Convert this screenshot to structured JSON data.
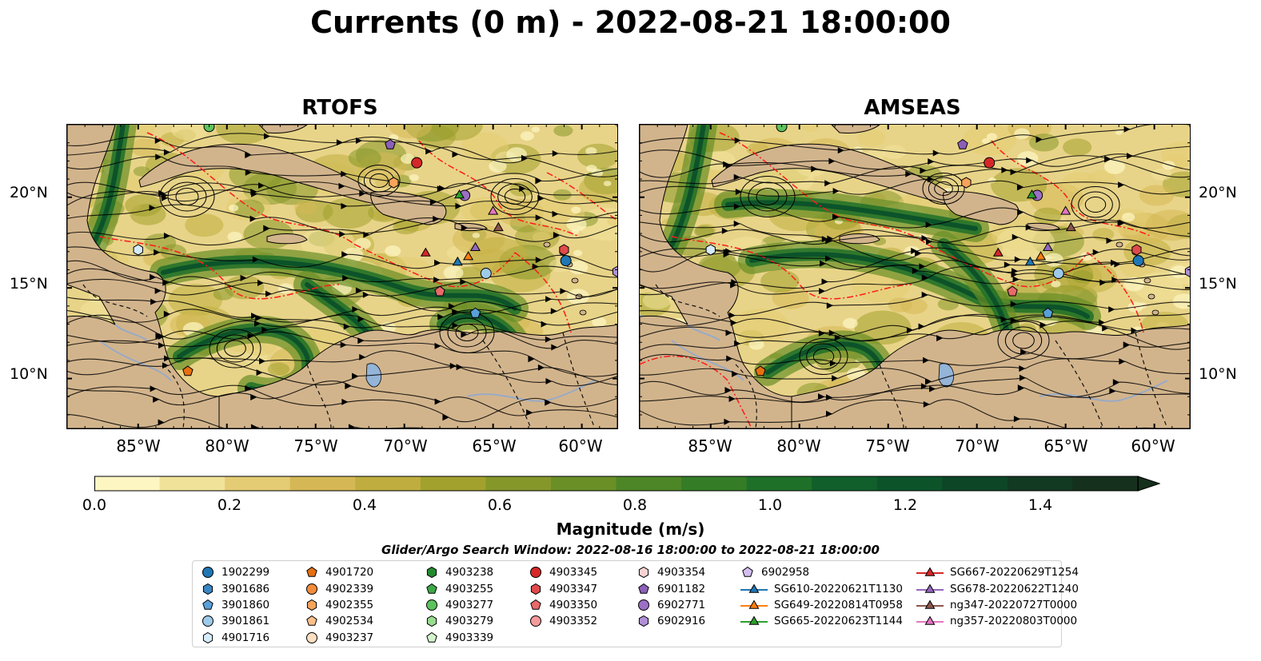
{
  "title": "Currents (0 m) - 2022-08-21 18:00:00",
  "panels": [
    {
      "name": "RTOFS"
    },
    {
      "name": "AMSEAS"
    }
  ],
  "axes": {
    "lat_ticks": [
      "20°N",
      "15°N",
      "10°N"
    ],
    "lon_ticks": [
      "85°W",
      "80°W",
      "75°W",
      "70°W",
      "65°W",
      "60°W"
    ]
  },
  "colorbar": {
    "label": "Magnitude (m/s)",
    "ticks": [
      "0.0",
      "0.2",
      "0.4",
      "0.6",
      "0.8",
      "1.0",
      "1.2",
      "1.4"
    ],
    "colors": [
      "#fdf6c3",
      "#f1e29a",
      "#e3cc73",
      "#d5b855",
      "#bfae3f",
      "#a2a12e",
      "#86972a",
      "#6a8f27",
      "#4d8626",
      "#347c26",
      "#1e7028",
      "#115f2b",
      "#0c532a",
      "#0d4627",
      "#123922",
      "#15301c"
    ]
  },
  "search_window": "Glider/Argo Search Window: 2022-08-16 18:00:00 to 2022-08-21 18:00:00",
  "legend": {
    "columns": [
      [
        {
          "label": "1902299",
          "marker": "circle",
          "color": "#1f77b4"
        },
        {
          "label": "3901686",
          "marker": "hexagon",
          "color": "#3a86c2"
        },
        {
          "label": "3901860",
          "marker": "pentagon",
          "color": "#5aa0d8"
        },
        {
          "label": "3901861",
          "marker": "circle",
          "color": "#9ecae9"
        },
        {
          "label": "4901716",
          "marker": "hexagon",
          "color": "#d6ebfa"
        }
      ],
      [
        {
          "label": "4901720",
          "marker": "pentagon",
          "color": "#e6700f"
        },
        {
          "label": "4902339",
          "marker": "circle",
          "color": "#f28c3c"
        },
        {
          "label": "4902355",
          "marker": "hexagon",
          "color": "#f7a35c"
        },
        {
          "label": "4902534",
          "marker": "pentagon",
          "color": "#fbc08a"
        },
        {
          "label": "4903237",
          "marker": "circle",
          "color": "#fde0c2"
        }
      ],
      [
        {
          "label": "4903238",
          "marker": "hexagon",
          "color": "#238b2e"
        },
        {
          "label": "4903255",
          "marker": "pentagon",
          "color": "#3ca846"
        },
        {
          "label": "4903277",
          "marker": "circle",
          "color": "#5dc25e"
        },
        {
          "label": "4903279",
          "marker": "hexagon",
          "color": "#98dc8f"
        },
        {
          "label": "4903339",
          "marker": "pentagon",
          "color": "#d5f2cf"
        }
      ],
      [
        {
          "label": "4903345",
          "marker": "circle",
          "color": "#d62728"
        },
        {
          "label": "4903347",
          "marker": "hexagon",
          "color": "#e04a4a"
        },
        {
          "label": "4903350",
          "marker": "pentagon",
          "color": "#e86a6a"
        },
        {
          "label": "4903352",
          "marker": "circle",
          "color": "#f39a9a"
        }
      ],
      [
        {
          "label": "4903354",
          "marker": "hexagon",
          "color": "#fbd2d2"
        },
        {
          "label": "6901182",
          "marker": "pentagon",
          "color": "#8c5fb8"
        },
        {
          "label": "6902771",
          "marker": "circle",
          "color": "#9b6fc6"
        },
        {
          "label": "6902916",
          "marker": "hexagon",
          "color": "#b08fd6"
        }
      ],
      [
        {
          "label": "6902958",
          "marker": "pentagon",
          "color": "#d2bff0"
        },
        {
          "label": "SG610-20220621T1130",
          "marker": "triangle-line",
          "color": "#1f77b4"
        },
        {
          "label": "SG649-20220814T0958",
          "marker": "triangle-line",
          "color": "#ff7f0e"
        },
        {
          "label": "SG665-20220623T1144",
          "marker": "triangle-line",
          "color": "#2ca02c"
        }
      ],
      [
        {
          "label": "SG667-20220629T1254",
          "marker": "triangle-line",
          "color": "#d62728"
        },
        {
          "label": "SG678-20220622T1240",
          "marker": "triangle-line",
          "color": "#9467bd"
        },
        {
          "label": "ng347-20220727T0000",
          "marker": "triangle-line",
          "color": "#8c564b"
        },
        {
          "label": "ng357-20220803T0000",
          "marker": "triangle-line",
          "color": "#e377c2"
        }
      ]
    ]
  }
}
